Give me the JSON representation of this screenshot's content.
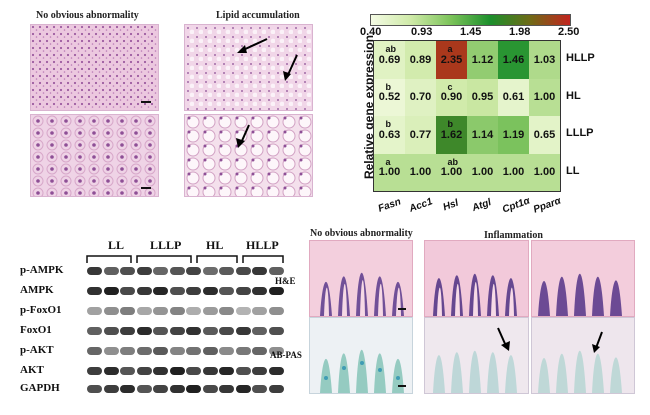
{
  "histology_top": {
    "title_left": "No obvious abnormality",
    "title_right": "Lipid accumulation"
  },
  "heatmap": {
    "colorbar_ticks": [
      "0.40",
      "0.93",
      "1.45",
      "1.98",
      "2.50"
    ],
    "ylabel": "Relative gene expression",
    "genes": [
      "Fasn",
      "Acc1",
      "Hsl",
      "Atgl",
      "Cpt1α",
      "Pparα"
    ],
    "groups": [
      "HLLP",
      "HL",
      "LLLP",
      "LL"
    ],
    "values": [
      [
        "0.69",
        "0.89",
        "2.35",
        "1.12",
        "1.46",
        "1.03"
      ],
      [
        "0.52",
        "0.70",
        "0.90",
        "0.95",
        "0.61",
        "1.00"
      ],
      [
        "0.63",
        "0.77",
        "1.62",
        "1.14",
        "1.19",
        "0.65"
      ],
      [
        "1.00",
        "1.00",
        "1.00",
        "1.00",
        "1.00",
        "1.00"
      ]
    ],
    "letters": [
      [
        "ab",
        "",
        "a",
        "",
        "",
        ""
      ],
      [
        "b",
        "",
        "c",
        "",
        "",
        ""
      ],
      [
        "b",
        "",
        "b",
        "",
        "",
        ""
      ],
      [
        "a",
        "",
        "ab",
        "",
        "",
        ""
      ]
    ]
  },
  "western_blot": {
    "groups": [
      "LL",
      "LLLP",
      "HL",
      "HLLP"
    ],
    "proteins": [
      "p-AMPK",
      "AMPK",
      "p-FoxO1",
      "FoxO1",
      "p-AKT",
      "AKT",
      "GAPDH"
    ]
  },
  "histology_bottom": {
    "title_left": "No obvious abnormality",
    "title_right": "Inflammation",
    "row_he": "H&E",
    "row_abpas": "AB-PAS"
  }
}
